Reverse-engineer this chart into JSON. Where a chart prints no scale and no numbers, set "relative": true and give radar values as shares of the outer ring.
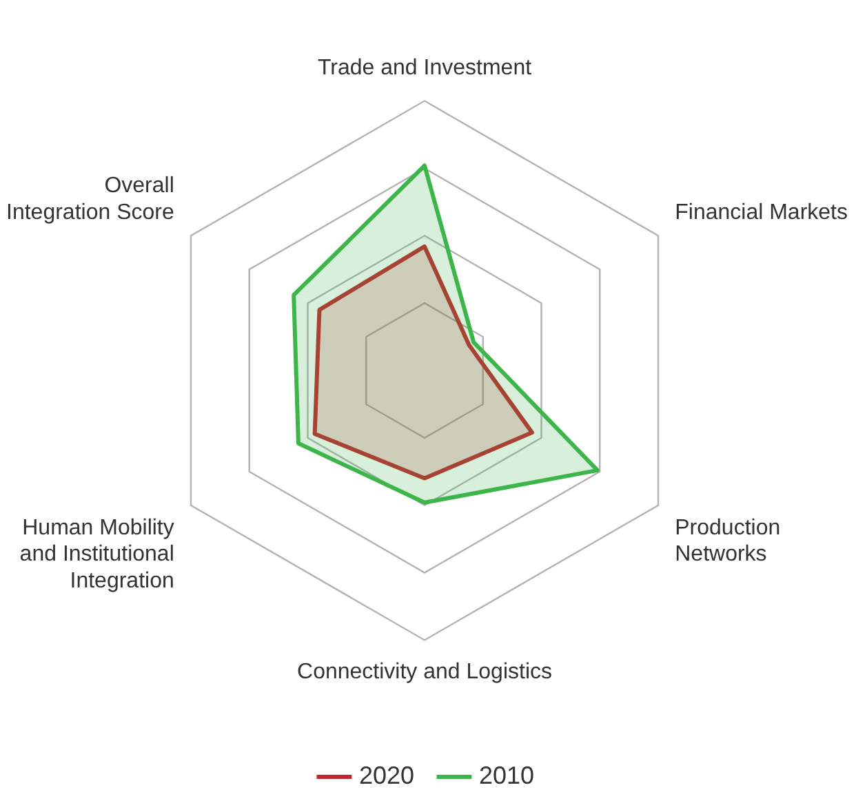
{
  "chart_data": {
    "type": "radar",
    "relative": true,
    "legend": "bottom",
    "grid": true,
    "marker": "none",
    "categories": [
      "Trade and Investment",
      "Financial Markets",
      "Production Networks",
      "Connectivity and Logistics",
      "Human Mobility and Institutional Integration",
      "Overall Integration Score"
    ],
    "series": [
      {
        "name": "2020",
        "color": "#c1272d",
        "values": [
          0.46,
          0.19,
          0.46,
          0.4,
          0.47,
          0.45
        ]
      },
      {
        "name": "2010",
        "color": "#3db54a",
        "values": [
          0.76,
          0.21,
          0.74,
          0.49,
          0.54,
          0.56
        ]
      }
    ]
  }
}
